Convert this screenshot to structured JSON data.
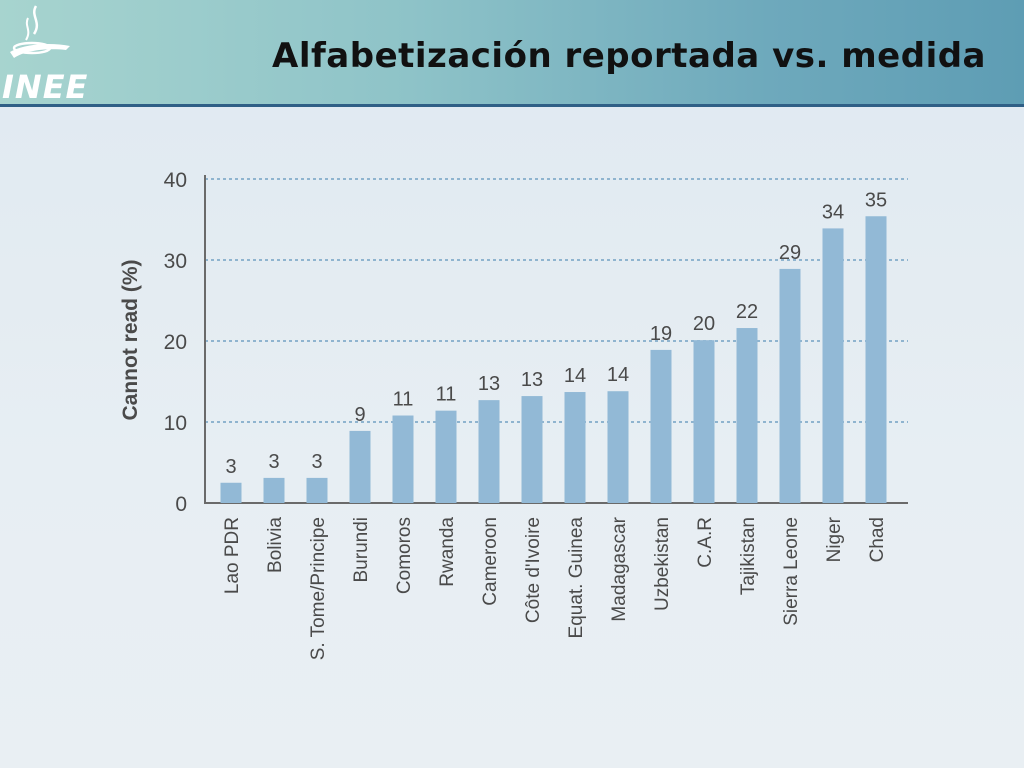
{
  "slide": {
    "title": "Alfabetización reportada vs. medida",
    "logo_text": "INEE",
    "colors": {
      "header_start": "#a7d4cf",
      "header_end": "#5e9db4",
      "header_rule": "#2f5f86",
      "bar": "#92b9d6",
      "grid": "#8fb4cf"
    }
  },
  "chart_data": {
    "type": "bar",
    "ylabel": "Cannot read (%)",
    "ylim": [
      0,
      40
    ],
    "yticks": [
      0,
      10,
      20,
      30,
      40
    ],
    "grid": true,
    "categories": [
      "Lao PDR",
      "Bolivia",
      "S. Tome/Principe",
      "Burundi",
      "Comoros",
      "Rwanda",
      "Cameroon",
      "Côte d'Ivoire",
      "Equat. Guinea",
      "Madagascar",
      "Uzbekistan",
      "C.A.R",
      "Tajikistan",
      "Sierra Leone",
      "Niger",
      "Chad"
    ],
    "values": [
      2.5,
      3.1,
      3.1,
      8.9,
      10.8,
      11.4,
      12.7,
      13.2,
      13.7,
      13.8,
      18.9,
      20.1,
      21.6,
      28.9,
      33.9,
      35.4
    ],
    "data_labels": [
      "3",
      "3",
      "3",
      "9",
      "11",
      "11",
      "13",
      "13",
      "14",
      "14",
      "19",
      "20",
      "22",
      "29",
      "34",
      "35"
    ]
  }
}
